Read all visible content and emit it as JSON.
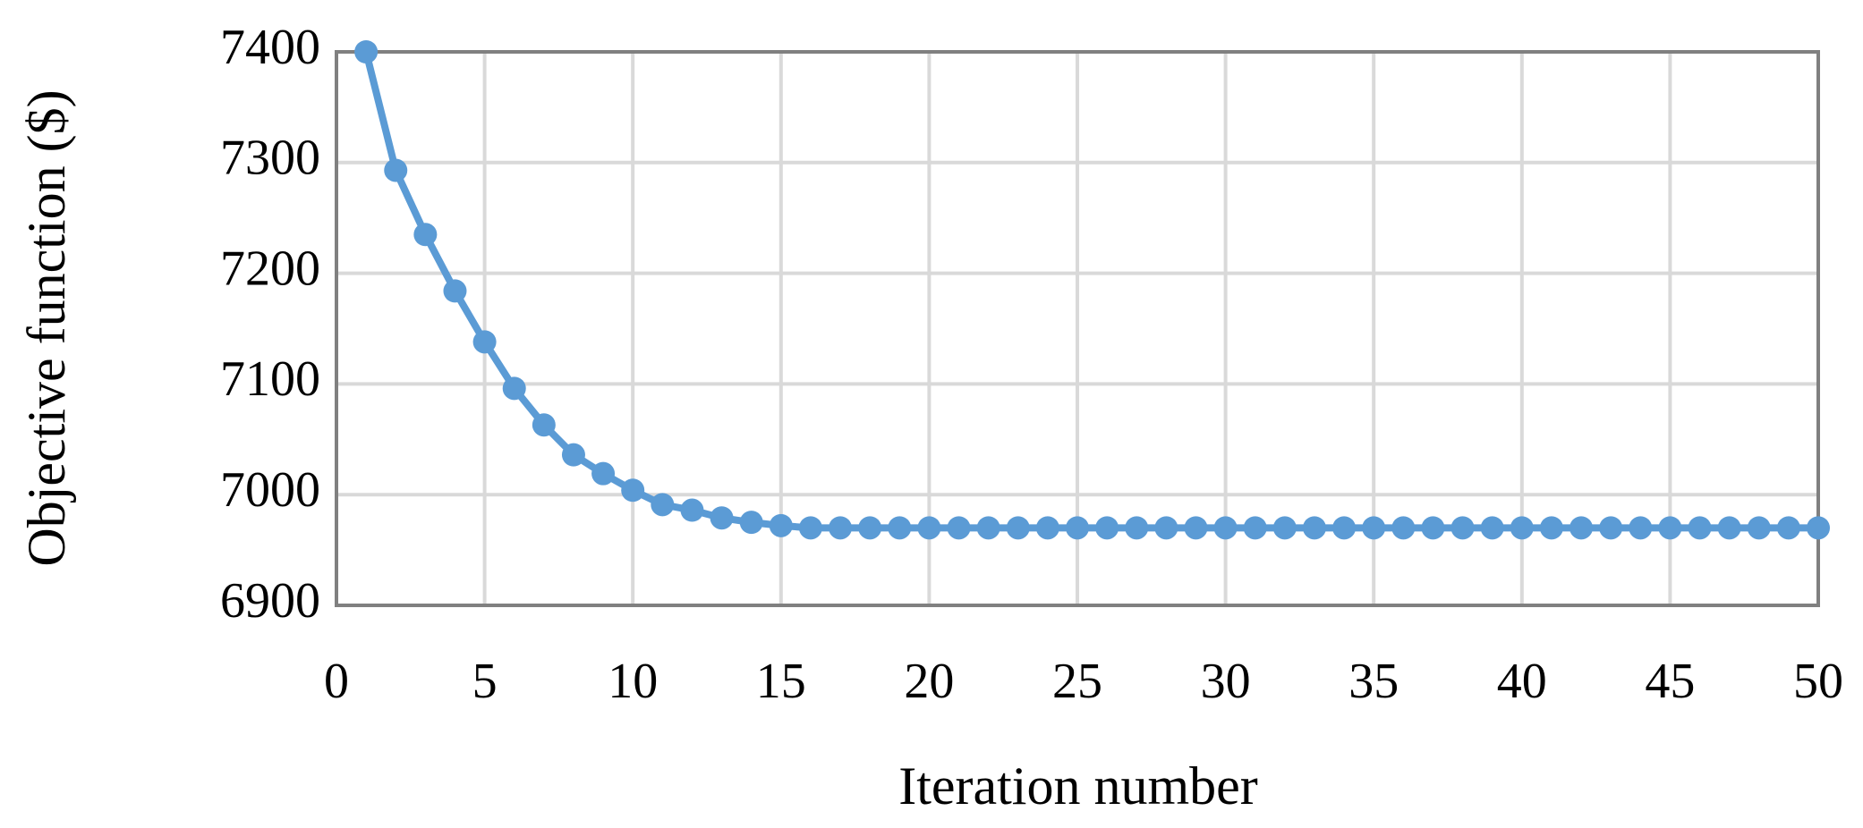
{
  "chart_data": {
    "type": "line",
    "x_label": "Iteration number",
    "y_label": "Objective function ($)",
    "x": [
      1,
      2,
      3,
      4,
      5,
      6,
      7,
      8,
      9,
      10,
      11,
      12,
      13,
      14,
      15,
      16,
      17,
      18,
      19,
      20,
      21,
      22,
      23,
      24,
      25,
      26,
      27,
      28,
      29,
      30,
      31,
      32,
      33,
      34,
      35,
      36,
      37,
      38,
      39,
      40,
      41,
      42,
      43,
      44,
      45,
      46,
      47,
      48,
      49,
      50
    ],
    "series": [
      {
        "name": "Objective function",
        "color": "#5b9bd5",
        "values": [
          7400,
          7293,
          7235,
          7184,
          7138,
          7096,
          7063,
          7036,
          7019,
          7004,
          6991,
          6986,
          6979,
          6975,
          6972,
          6970,
          6970,
          6970,
          6970,
          6970,
          6970,
          6970,
          6970,
          6970,
          6970,
          6970,
          6970,
          6970,
          6970,
          6970,
          6970,
          6970,
          6970,
          6970,
          6970,
          6970,
          6970,
          6970,
          6970,
          6970,
          6970,
          6970,
          6970,
          6970,
          6970,
          6970,
          6970,
          6970,
          6970,
          6970
        ]
      }
    ],
    "xlim": [
      0,
      50
    ],
    "xticks": [
      0,
      5,
      10,
      15,
      20,
      25,
      30,
      35,
      40,
      45,
      50
    ],
    "ylim": [
      6900,
      7400
    ],
    "yticks": [
      6900,
      7000,
      7100,
      7200,
      7300,
      7400
    ],
    "grid": true
  }
}
